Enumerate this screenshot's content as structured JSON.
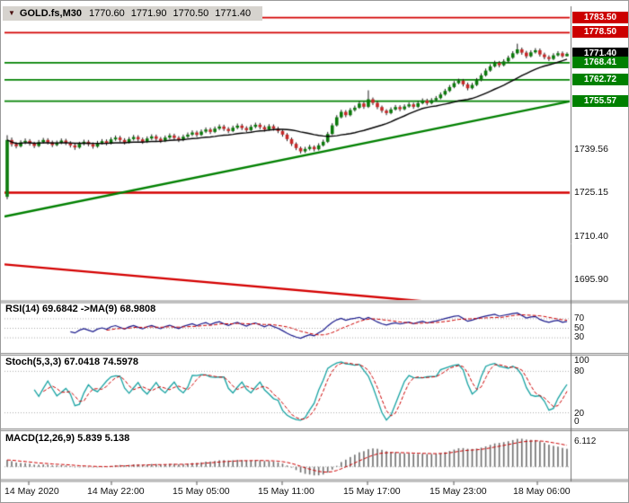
{
  "title": {
    "expander_icon": "▼",
    "symbol": "GOLD.fs,M30",
    "open": "1770.60",
    "high": "1771.90",
    "low": "1770.50",
    "close": "1771.40"
  },
  "price_scale": {
    "tags": [
      {
        "text": "1783.50",
        "price": 1783.5,
        "kind": "resistance"
      },
      {
        "text": "1778.50",
        "price": 1778.5,
        "kind": "resistance"
      },
      {
        "text": "1771.40",
        "price": 1771.4,
        "kind": "current"
      },
      {
        "text": "1768.41",
        "price": 1768.41,
        "kind": "support"
      },
      {
        "text": "1762.72",
        "price": 1762.72,
        "kind": "support"
      },
      {
        "text": "1755.57",
        "price": 1755.57,
        "kind": "support"
      }
    ],
    "ticks": [
      {
        "text": "1739.56",
        "price": 1739.56
      },
      {
        "text": "1725.15",
        "price": 1725.15
      },
      {
        "text": "1710.40",
        "price": 1710.4
      },
      {
        "text": "1695.90",
        "price": 1695.9
      }
    ]
  },
  "indicators": {
    "rsi": {
      "label": "RSI(14) 69.6842  ->MA(9) 68.9808",
      "levels": [
        "70",
        "50",
        "30"
      ]
    },
    "stoch": {
      "label": "Stoch(5,3,3) 67.0418 74.5978",
      "levels": [
        "100",
        "80",
        "20",
        "0"
      ]
    },
    "macd": {
      "label": "MACD(12,26,9) 5.839 5.138",
      "max_label": "6.112"
    }
  },
  "time_axis": [
    "14 May 2020",
    "14 May 22:00",
    "15 May 05:00",
    "15 May 11:00",
    "15 May 17:00",
    "15 May 23:00",
    "18 May 06:00"
  ],
  "colors": {
    "bull": "#0b7a0b",
    "bear": "#c62828",
    "wick": "#1a1a1a",
    "ma": "#000000",
    "level_red": "#d40000",
    "level_green": "#008000",
    "rsi": "#1a1a8c",
    "rsi_ma": "#cc0000",
    "stoch_k": "#17a2a2",
    "stoch_d": "#cc0000",
    "macd_hist": "#6e6e6e",
    "macd_signal": "#cc0000",
    "tag": {
      "resistance": "#cc0000",
      "current": "#000000",
      "support": "#008000"
    }
  },
  "chart_data": {
    "type": "candlestick",
    "symbol": "GOLD.fs",
    "timeframe": "M30",
    "last_ohlc": {
      "open": 1770.6,
      "high": 1771.9,
      "low": 1770.5,
      "close": 1771.4
    },
    "visible_price_range": [
      1689.1,
      1786.7
    ],
    "price_axis_ticks": [
      1739.56,
      1725.15,
      1710.4,
      1695.9
    ],
    "horizontal_levels": [
      {
        "price": 1783.5,
        "color": "red",
        "width": 1.8
      },
      {
        "price": 1778.5,
        "color": "red",
        "width": 1.8
      },
      {
        "price": 1768.41,
        "color": "green",
        "width": 1.8
      },
      {
        "price": 1762.72,
        "color": "green",
        "width": 1.8
      },
      {
        "price": 1755.57,
        "color": "green",
        "width": 1.8
      },
      {
        "price": 1725.0,
        "color": "red",
        "width": 2.6
      }
    ],
    "trendlines": [
      {
        "from_price": 1717.0,
        "to_price": 1755.5,
        "color": "green"
      },
      {
        "from_price": 1701.0,
        "to_price": 1684.4,
        "color": "red"
      }
    ],
    "moving_average_period": 21,
    "indicators": {
      "rsi": {
        "period": 14,
        "ma_period": 9,
        "last": 69.6842,
        "ma_last": 68.9808,
        "levels": [
          70,
          50,
          30
        ]
      },
      "stoch": {
        "k": 5,
        "d": 3,
        "slowing": 3,
        "last_k": 67.0418,
        "last_d": 74.5978,
        "levels": [
          100,
          80,
          20,
          0
        ]
      },
      "macd": {
        "fast": 12,
        "slow": 26,
        "signal": 9,
        "last": 5.839,
        "signal_last": 5.138,
        "scale_max": 6.112
      }
    },
    "candles": [
      [
        1723.6,
        1744.2,
        1722.8,
        1742.6
      ],
      [
        1742.6,
        1743.4,
        1740.4,
        1741.2
      ],
      [
        1741.2,
        1741.9,
        1739.8,
        1740.5
      ],
      [
        1740.5,
        1742.5,
        1740.1,
        1741.8
      ],
      [
        1741.8,
        1743.1,
        1741.2,
        1742.3
      ],
      [
        1742.3,
        1742.9,
        1740.7,
        1741.4
      ],
      [
        1741.4,
        1742.0,
        1739.9,
        1740.6
      ],
      [
        1740.6,
        1742.6,
        1740.2,
        1741.9
      ],
      [
        1741.9,
        1743.3,
        1741.4,
        1742.6
      ],
      [
        1742.6,
        1743.2,
        1741.1,
        1741.8
      ],
      [
        1741.8,
        1742.4,
        1740.2,
        1740.9
      ],
      [
        1740.9,
        1742.4,
        1740.5,
        1741.7
      ],
      [
        1741.7,
        1743.1,
        1741.2,
        1742.4
      ],
      [
        1742.4,
        1743.0,
        1740.9,
        1741.6
      ],
      [
        1741.6,
        1742.2,
        1740.1,
        1740.8
      ],
      [
        1740.8,
        1741.4,
        1739.3,
        1740.1
      ],
      [
        1740.1,
        1742.0,
        1739.7,
        1741.3
      ],
      [
        1741.3,
        1742.7,
        1740.8,
        1742.0
      ],
      [
        1742.0,
        1742.6,
        1740.5,
        1741.2
      ],
      [
        1741.2,
        1741.8,
        1739.7,
        1740.4
      ],
      [
        1740.4,
        1742.3,
        1740.0,
        1741.6
      ],
      [
        1741.6,
        1742.9,
        1741.1,
        1742.2
      ],
      [
        1742.2,
        1742.8,
        1740.8,
        1741.5
      ],
      [
        1741.5,
        1743.5,
        1741.1,
        1742.8
      ],
      [
        1742.8,
        1744.1,
        1742.3,
        1743.4
      ],
      [
        1743.4,
        1744.0,
        1741.9,
        1742.6
      ],
      [
        1742.6,
        1743.2,
        1741.1,
        1741.8
      ],
      [
        1741.8,
        1743.6,
        1741.4,
        1742.9
      ],
      [
        1742.9,
        1744.3,
        1742.4,
        1743.6
      ],
      [
        1743.6,
        1744.2,
        1742.1,
        1742.8
      ],
      [
        1742.8,
        1743.4,
        1741.3,
        1742.0
      ],
      [
        1742.0,
        1743.8,
        1741.6,
        1743.1
      ],
      [
        1743.1,
        1744.5,
        1742.6,
        1743.8
      ],
      [
        1743.8,
        1744.4,
        1742.3,
        1743.0
      ],
      [
        1743.0,
        1743.6,
        1741.6,
        1742.3
      ],
      [
        1742.3,
        1744.1,
        1741.9,
        1743.4
      ],
      [
        1743.4,
        1744.8,
        1742.9,
        1744.1
      ],
      [
        1744.1,
        1744.7,
        1742.6,
        1743.3
      ],
      [
        1743.3,
        1743.9,
        1741.9,
        1742.6
      ],
      [
        1742.6,
        1744.4,
        1742.2,
        1743.7
      ],
      [
        1743.7,
        1745.1,
        1743.2,
        1744.4
      ],
      [
        1744.4,
        1745.8,
        1743.9,
        1745.1
      ],
      [
        1745.1,
        1745.7,
        1743.6,
        1744.3
      ],
      [
        1744.3,
        1746.1,
        1743.9,
        1745.4
      ],
      [
        1745.4,
        1746.8,
        1744.9,
        1746.1
      ],
      [
        1746.1,
        1746.7,
        1744.6,
        1745.3
      ],
      [
        1745.3,
        1747.1,
        1744.9,
        1746.4
      ],
      [
        1746.4,
        1747.8,
        1745.9,
        1747.1
      ],
      [
        1747.1,
        1747.7,
        1745.6,
        1746.3
      ],
      [
        1746.3,
        1746.9,
        1744.9,
        1745.6
      ],
      [
        1745.6,
        1747.4,
        1745.2,
        1746.7
      ],
      [
        1746.7,
        1748.1,
        1746.2,
        1747.4
      ],
      [
        1747.4,
        1748.0,
        1745.9,
        1746.6
      ],
      [
        1746.6,
        1747.2,
        1745.2,
        1745.9
      ],
      [
        1745.9,
        1747.7,
        1745.5,
        1747.0
      ],
      [
        1747.0,
        1748.4,
        1746.5,
        1747.7
      ],
      [
        1747.7,
        1748.3,
        1746.2,
        1746.9
      ],
      [
        1746.9,
        1747.5,
        1745.4,
        1746.1
      ],
      [
        1746.1,
        1747.9,
        1745.7,
        1747.2
      ],
      [
        1747.2,
        1747.8,
        1745.7,
        1746.4
      ],
      [
        1746.4,
        1747.0,
        1744.9,
        1745.6
      ],
      [
        1745.6,
        1746.0,
        1743.7,
        1744.4
      ],
      [
        1744.4,
        1744.9,
        1742.2,
        1742.9
      ],
      [
        1742.9,
        1743.4,
        1740.6,
        1741.3
      ],
      [
        1741.3,
        1741.8,
        1739.2,
        1739.9
      ],
      [
        1739.9,
        1740.4,
        1738.1,
        1738.8
      ],
      [
        1738.8,
        1740.3,
        1738.3,
        1739.6
      ],
      [
        1739.6,
        1741.0,
        1739.1,
        1740.3
      ],
      [
        1740.3,
        1740.8,
        1738.8,
        1739.5
      ],
      [
        1739.5,
        1741.5,
        1739.1,
        1740.8
      ],
      [
        1740.8,
        1742.7,
        1740.4,
        1742.0
      ],
      [
        1742.0,
        1745.3,
        1741.6,
        1744.6
      ],
      [
        1744.6,
        1748.2,
        1744.2,
        1747.5
      ],
      [
        1747.5,
        1750.9,
        1747.1,
        1750.2
      ],
      [
        1750.2,
        1752.7,
        1749.8,
        1752.0
      ],
      [
        1752.0,
        1752.6,
        1750.2,
        1750.9
      ],
      [
        1750.9,
        1753.3,
        1750.5,
        1752.6
      ],
      [
        1752.6,
        1754.1,
        1752.1,
        1753.4
      ],
      [
        1753.4,
        1755.5,
        1753.0,
        1754.8
      ],
      [
        1754.8,
        1755.4,
        1753.0,
        1753.7
      ],
      [
        1753.7,
        1759.2,
        1753.3,
        1756.2
      ],
      [
        1756.2,
        1756.8,
        1754.3,
        1755.0
      ],
      [
        1755.0,
        1755.6,
        1752.9,
        1753.6
      ],
      [
        1753.6,
        1754.1,
        1751.7,
        1752.4
      ],
      [
        1752.4,
        1752.9,
        1750.9,
        1751.6
      ],
      [
        1751.6,
        1753.5,
        1751.2,
        1752.8
      ],
      [
        1752.8,
        1754.3,
        1752.4,
        1753.6
      ],
      [
        1753.6,
        1754.2,
        1752.2,
        1752.9
      ],
      [
        1752.9,
        1754.5,
        1752.5,
        1753.8
      ],
      [
        1753.8,
        1755.2,
        1753.4,
        1754.5
      ],
      [
        1754.5,
        1755.1,
        1753.0,
        1753.7
      ],
      [
        1753.7,
        1755.6,
        1753.3,
        1754.9
      ],
      [
        1754.9,
        1756.5,
        1754.5,
        1755.8
      ],
      [
        1755.8,
        1756.4,
        1754.2,
        1754.9
      ],
      [
        1754.9,
        1756.6,
        1754.5,
        1755.9
      ],
      [
        1755.9,
        1757.3,
        1755.5,
        1756.6
      ],
      [
        1756.6,
        1758.5,
        1756.2,
        1757.8
      ],
      [
        1757.8,
        1759.7,
        1757.4,
        1759.0
      ],
      [
        1759.0,
        1761.0,
        1758.6,
        1760.3
      ],
      [
        1760.3,
        1762.3,
        1759.9,
        1761.6
      ],
      [
        1761.6,
        1763.1,
        1761.2,
        1762.4
      ],
      [
        1762.4,
        1763.0,
        1760.5,
        1761.2
      ],
      [
        1761.2,
        1761.8,
        1759.2,
        1759.9
      ],
      [
        1759.9,
        1761.7,
        1759.5,
        1761.0
      ],
      [
        1761.0,
        1763.3,
        1760.6,
        1762.6
      ],
      [
        1762.6,
        1764.9,
        1762.2,
        1764.2
      ],
      [
        1764.2,
        1766.5,
        1763.8,
        1765.8
      ],
      [
        1765.8,
        1767.9,
        1765.4,
        1767.2
      ],
      [
        1767.2,
        1769.1,
        1766.8,
        1768.4
      ],
      [
        1768.4,
        1769.0,
        1766.9,
        1767.6
      ],
      [
        1767.6,
        1769.6,
        1767.2,
        1768.9
      ],
      [
        1768.9,
        1770.8,
        1768.5,
        1770.1
      ],
      [
        1770.1,
        1772.3,
        1769.7,
        1771.6
      ],
      [
        1771.6,
        1774.8,
        1771.2,
        1772.9
      ],
      [
        1772.9,
        1773.5,
        1771.1,
        1771.8
      ],
      [
        1771.8,
        1772.4,
        1769.9,
        1770.6
      ],
      [
        1770.6,
        1772.6,
        1770.2,
        1771.9
      ],
      [
        1771.9,
        1773.3,
        1771.5,
        1772.6
      ],
      [
        1772.6,
        1773.2,
        1770.5,
        1771.2
      ],
      [
        1771.2,
        1771.8,
        1769.6,
        1770.3
      ],
      [
        1770.3,
        1770.9,
        1769.0,
        1769.7
      ],
      [
        1769.7,
        1771.6,
        1769.3,
        1770.9
      ],
      [
        1770.9,
        1772.3,
        1770.5,
        1771.6
      ],
      [
        1771.6,
        1772.2,
        1770.1,
        1770.6
      ],
      [
        1770.6,
        1771.9,
        1770.5,
        1771.4
      ]
    ]
  }
}
